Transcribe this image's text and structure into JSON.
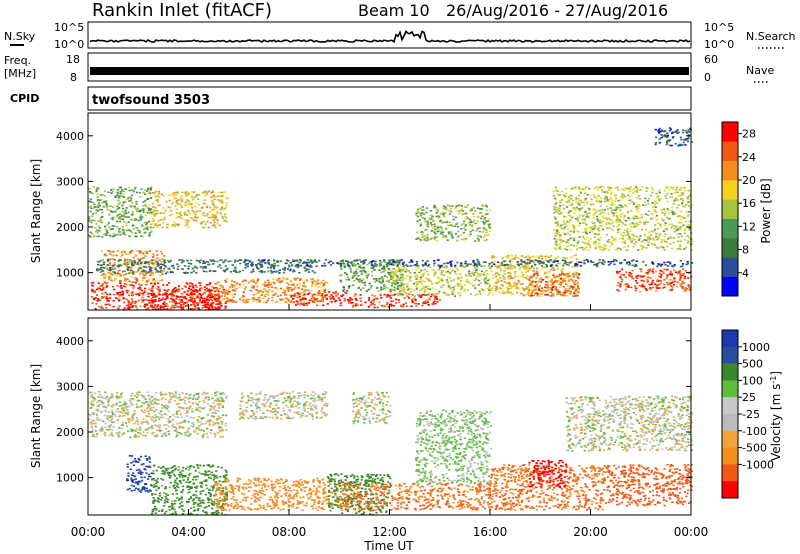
{
  "header": {
    "station": "Rankin Inlet (fitACF)",
    "beam": "Beam 10",
    "dates": "26/Aug/2016 - 27/Aug/2016"
  },
  "nsky_panel": {
    "left_label": "N.Sky",
    "left_ticks": [
      "10^5",
      "10^0"
    ],
    "right_ticks": [
      "10^5",
      "10^0"
    ],
    "right_label": "N.Search"
  },
  "freq_panel": {
    "left_label_1": "Freq.",
    "left_label_2": "[MHz]",
    "left_ticks": [
      "18",
      "8"
    ],
    "right_ticks": [
      "60",
      "0"
    ],
    "right_label": "Nave"
  },
  "cpid_panel": {
    "label": "CPID",
    "value": "twofsound 3503"
  },
  "colors": {
    "power_scale": [
      "#0000ff",
      "#2a4e9c",
      "#3a7a3a",
      "#4a9a5a",
      "#a6c23e",
      "#f4d21e",
      "#f48c1e",
      "#f05a14",
      "#ff0000"
    ],
    "velocity_scale": [
      "#ff0000",
      "#f05a14",
      "#f48c1e",
      "#f4a43c",
      "#bbbbbb",
      "#c8c8c8",
      "#5cbf3c",
      "#3a8a2a",
      "#2a4e9c",
      "#1a3ab0"
    ]
  },
  "chart_data": [
    {
      "type": "heatmap",
      "name": "power",
      "xlabel": "",
      "ylabel": "Slant Range [km]",
      "xlim": [
        "00:00",
        "24:00"
      ],
      "ylim": [
        180,
        4500
      ],
      "y_ticks": [
        1000,
        2000,
        3000,
        4000
      ],
      "colorbar": {
        "label": "Power [dB]",
        "ticks": [
          4,
          8,
          12,
          16,
          20,
          24,
          28
        ],
        "range": [
          0,
          30
        ]
      },
      "regions": [
        {
          "t0": 0.1,
          "t1": 5.2,
          "r0": 200,
          "r1": 800,
          "value": 27
        },
        {
          "t0": 0.5,
          "t1": 3.0,
          "r0": 800,
          "r1": 1500,
          "value": 22
        },
        {
          "t0": 2.2,
          "t1": 5.6,
          "r0": 200,
          "r1": 650,
          "value": 28
        },
        {
          "t0": 5.0,
          "t1": 9.5,
          "r0": 350,
          "r1": 900,
          "value": 22
        },
        {
          "t0": 8.0,
          "t1": 10.5,
          "r0": 300,
          "r1": 600,
          "value": 27
        },
        {
          "t0": 10.0,
          "t1": 12.5,
          "r0": 600,
          "r1": 1300,
          "value": 12
        },
        {
          "t0": 10.5,
          "t1": 14.0,
          "r0": 250,
          "r1": 550,
          "value": 26
        },
        {
          "t0": 12.0,
          "t1": 16.0,
          "r0": 500,
          "r1": 1200,
          "value": 16
        },
        {
          "t0": 13.0,
          "t1": 16.0,
          "r0": 1700,
          "r1": 2500,
          "value": 14
        },
        {
          "t0": 16.0,
          "t1": 19.5,
          "r0": 500,
          "r1": 1400,
          "value": 18
        },
        {
          "t0": 17.5,
          "t1": 19.5,
          "r0": 500,
          "r1": 1000,
          "value": 24
        },
        {
          "t0": 18.5,
          "t1": 24.0,
          "r0": 1500,
          "r1": 2900,
          "value": 16
        },
        {
          "t0": 21.0,
          "t1": 24.0,
          "r0": 600,
          "r1": 1100,
          "value": 26
        },
        {
          "t0": 0.0,
          "t1": 2.5,
          "r0": 1800,
          "r1": 2900,
          "value": 13
        },
        {
          "t0": 2.5,
          "t1": 5.5,
          "r0": 2000,
          "r1": 2800,
          "value": 18
        },
        {
          "t0": 0.3,
          "t1": 9.0,
          "r0": 1000,
          "r1": 1300,
          "value": 8
        },
        {
          "t0": 6.0,
          "t1": 24.0,
          "r0": 1150,
          "r1": 1300,
          "value": 6
        },
        {
          "t0": 22.5,
          "t1": 24.0,
          "r0": 3800,
          "r1": 4200,
          "value": 6
        }
      ]
    },
    {
      "type": "heatmap",
      "name": "velocity",
      "xlabel": "Time UT",
      "ylabel": "Slant Range [km]",
      "xlim": [
        "00:00",
        "24:00"
      ],
      "x_ticks": [
        "00:00",
        "04:00",
        "08:00",
        "12:00",
        "16:00",
        "20:00",
        "00:00"
      ],
      "ylim": [
        180,
        4500
      ],
      "y_ticks": [
        1000,
        2000,
        3000,
        4000
      ],
      "colorbar": {
        "label": "Velocity [m s^-1]",
        "ticks": [
          "1000",
          "500",
          "100",
          "25",
          "-25",
          "-100",
          "-500",
          "-1000"
        ]
      },
      "regions": [
        {
          "t0": 0.0,
          "t1": 5.5,
          "r0": 1900,
          "r1": 2900,
          "value": 0
        },
        {
          "t0": 2.5,
          "t1": 5.5,
          "r0": 200,
          "r1": 1300,
          "value": 150
        },
        {
          "t0": 1.5,
          "t1": 2.5,
          "r0": 700,
          "r1": 1500,
          "value": 700
        },
        {
          "t0": 5.0,
          "t1": 10.0,
          "r0": 300,
          "r1": 1000,
          "value": -200
        },
        {
          "t0": 6.0,
          "t1": 9.5,
          "r0": 2300,
          "r1": 2900,
          "value": 0
        },
        {
          "t0": 9.5,
          "t1": 12.0,
          "r0": 200,
          "r1": 1100,
          "value": 200
        },
        {
          "t0": 10.0,
          "t1": 16.0,
          "r0": 300,
          "r1": 900,
          "value": -300
        },
        {
          "t0": 10.5,
          "t1": 12.0,
          "r0": 2200,
          "r1": 2900,
          "value": 0
        },
        {
          "t0": 13.0,
          "t1": 16.0,
          "r0": 900,
          "r1": 2500,
          "value": 40
        },
        {
          "t0": 16.0,
          "t1": 20.5,
          "r0": 300,
          "r1": 1300,
          "value": -300
        },
        {
          "t0": 17.5,
          "t1": 19.0,
          "r0": 800,
          "r1": 1400,
          "value": -800
        },
        {
          "t0": 19.0,
          "t1": 24.0,
          "r0": 1600,
          "r1": 2800,
          "value": 0
        },
        {
          "t0": 20.5,
          "t1": 24.0,
          "r0": 400,
          "r1": 1300,
          "value": -400
        }
      ]
    }
  ]
}
